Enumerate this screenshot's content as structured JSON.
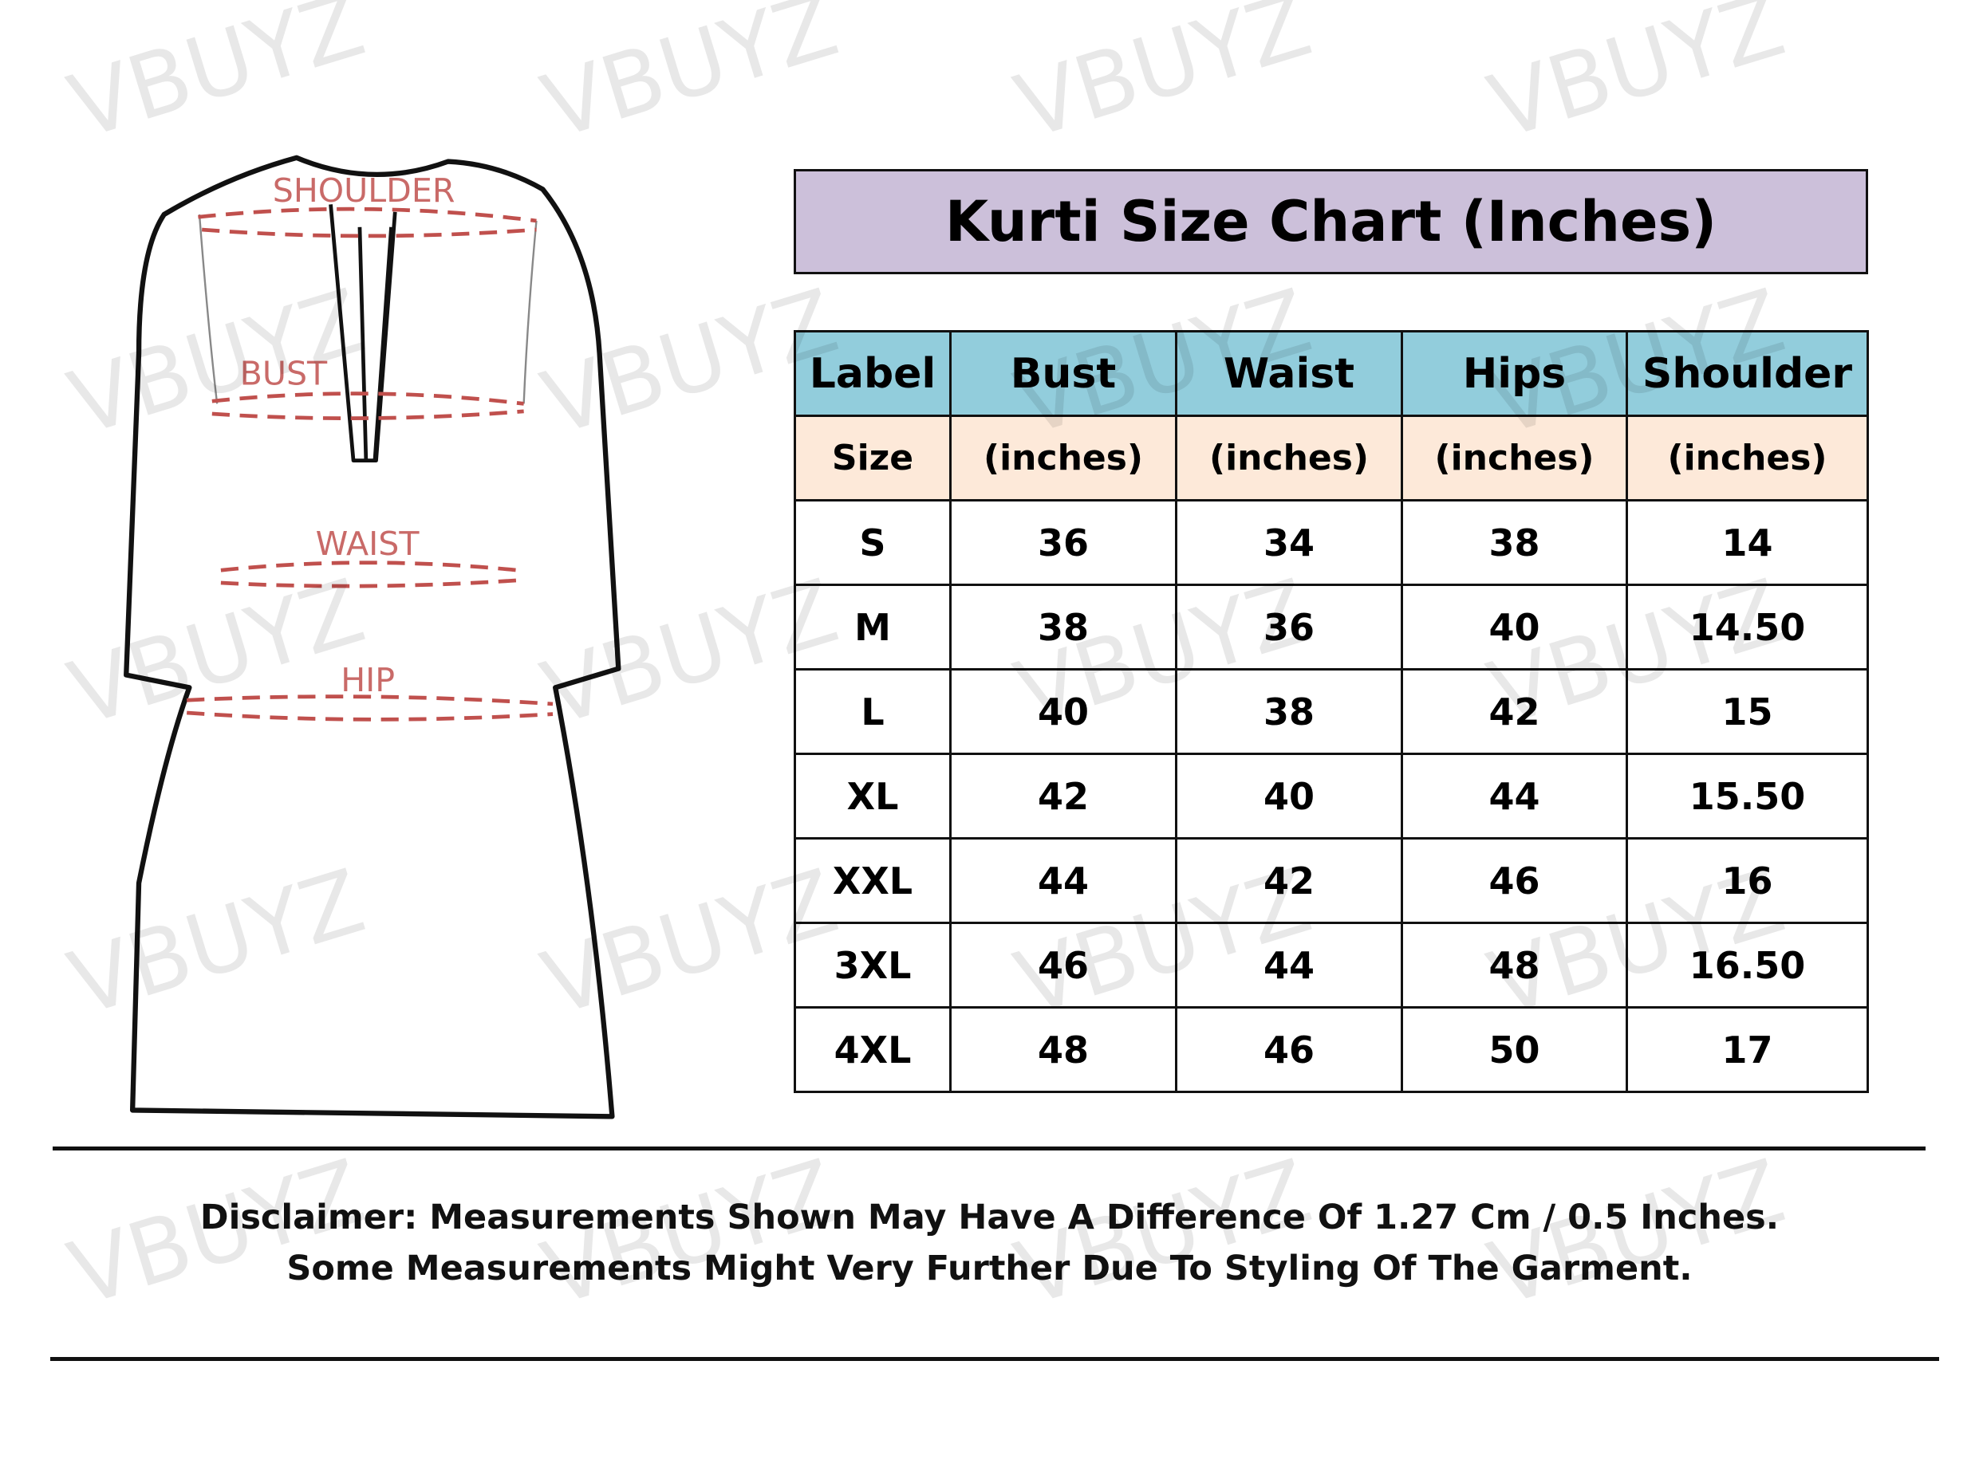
{
  "watermark": "VBUYZ",
  "diagram": {
    "labels": {
      "shoulder": "SHOULDER",
      "bust": "BUST",
      "waist": "WAIST",
      "hip": "HIP"
    },
    "dash_color": "#c0504d"
  },
  "title": "Kurti Size Chart (Inches)",
  "table": {
    "headers": [
      "Label",
      "Bust",
      "Waist",
      "Hips",
      "Shoulder"
    ],
    "subheaders": [
      "Size",
      "(inches)",
      "(inches)",
      "(inches)",
      "(inches)"
    ],
    "rows": [
      [
        "S",
        "36",
        "34",
        "38",
        "14"
      ],
      [
        "M",
        "38",
        "36",
        "40",
        "14.50"
      ],
      [
        "L",
        "40",
        "38",
        "42",
        "15"
      ],
      [
        "XL",
        "42",
        "40",
        "44",
        "15.50"
      ],
      [
        "XXL",
        "44",
        "42",
        "46",
        "16"
      ],
      [
        "3XL",
        "46",
        "44",
        "48",
        "16.50"
      ],
      [
        "4XL",
        "48",
        "46",
        "50",
        "17"
      ]
    ]
  },
  "disclaimer": {
    "line1": "Disclaimer: Measurements Shown May Have A Difference Of 1.27 Cm / 0.5 Inches.",
    "line2": "Some Measurements Might Very Further Due To Styling Of The Garment."
  },
  "colors": {
    "title_bg": "#ccc0da",
    "header_bg": "#92cddc",
    "subheader_bg": "#fde9d9"
  }
}
